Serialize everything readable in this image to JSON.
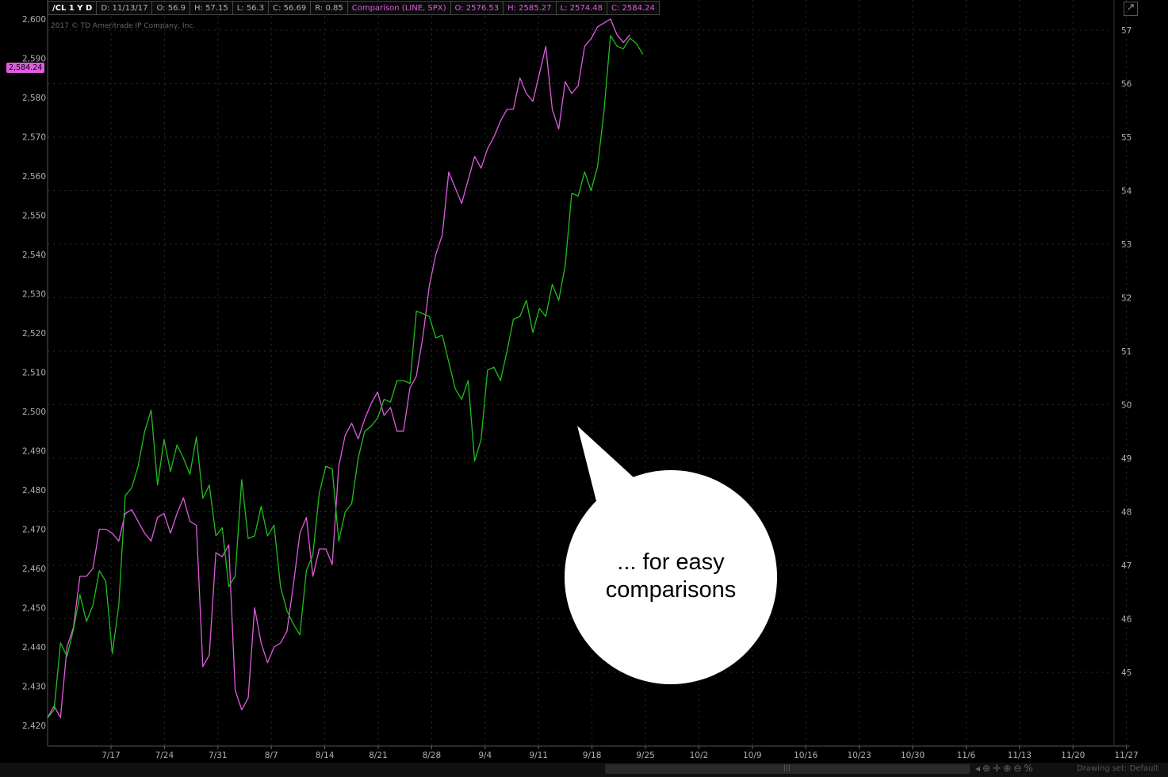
{
  "header": {
    "symbol": "/CL 1 Y D",
    "date": "D: 11/13/17",
    "open": "O: 56.9",
    "high": "H: 57.15",
    "low": "L: 56.3",
    "close": "C: 56.69",
    "range": "R: 0.85",
    "comparison": "Comparison (LINE, SPX)",
    "cmp_open": "O: 2576.53",
    "cmp_high": "H: 2585.27",
    "cmp_low": "L: 2574.48",
    "cmp_close": "C: 2584.24"
  },
  "copyright": "2017 © TD Ameritrade IP Company, Inc.",
  "price_tag": "2,584.24",
  "corner_icon": "expand-icon",
  "callout": {
    "line1": "... for easy",
    "line2": "comparisons"
  },
  "footer": {
    "drawing_set": "Drawing set: Default",
    "grip": "|||"
  },
  "colors": {
    "cl": "#1fbf1f",
    "spx": "#e05ce0",
    "background": "#000000",
    "grid": "#2e2e2e"
  },
  "chart_data": {
    "type": "line",
    "x_tick_labels": [
      "7/17",
      "7/24",
      "7/31",
      "8/7",
      "8/14",
      "8/21",
      "8/28",
      "9/4",
      "9/11",
      "9/18",
      "9/25",
      "10/2",
      "10/9",
      "10/16",
      "10/23",
      "10/30",
      "11/6",
      "11/13",
      "11/20",
      "11/27"
    ],
    "left_axis": {
      "ticks": [
        "2,420",
        "2,430",
        "2,440",
        "2,450",
        "2,460",
        "2,470",
        "2,480",
        "2,490",
        "2,500",
        "2,510",
        "2,520",
        "2,530",
        "2,540",
        "2,550",
        "2,560",
        "2,570",
        "2,580",
        "2,590",
        "2,600"
      ],
      "range": [
        2417,
        2600
      ]
    },
    "right_axis": {
      "ticks": [
        "45",
        "46",
        "47",
        "48",
        "49",
        "50",
        "51",
        "52",
        "53",
        "54",
        "55",
        "56",
        "57"
      ]
    },
    "grid": true,
    "series": [
      {
        "name": "SPX",
        "axis": "left",
        "color": "#e05ce0",
        "values": [
          2422,
          2425,
          2422,
          2440,
          2445,
          2458,
          2458,
          2460,
          2470,
          2470,
          2469,
          2467,
          2474,
          2475,
          2472,
          2469,
          2467,
          2473,
          2474,
          2469,
          2474,
          2478,
          2472,
          2471,
          2435,
          2438,
          2464,
          2463,
          2466,
          2429,
          2424,
          2427,
          2450,
          2441,
          2436,
          2440,
          2441,
          2444,
          2456,
          2469,
          2473,
          2458,
          2465,
          2465,
          2461,
          2486,
          2494,
          2497,
          2493,
          2498,
          2502,
          2505,
          2499,
          2501,
          2495,
          2495,
          2506,
          2509,
          2519,
          2532,
          2540,
          2545,
          2561,
          2557,
          2553,
          2559,
          2565,
          2562,
          2567,
          2570,
          2574,
          2577,
          2577,
          2585,
          2581,
          2579,
          2586,
          2593,
          2577,
          2572,
          2584,
          2581,
          2583,
          2593,
          2595,
          2598,
          2599,
          2600,
          2596,
          2594,
          2596
        ]
      },
      {
        "name": "/CL",
        "axis": "right",
        "color": "#1fbf1f",
        "values": [
          44.15,
          44.3,
          45.55,
          45.3,
          45.8,
          46.45,
          45.95,
          46.25,
          46.9,
          46.7,
          45.35,
          46.25,
          48.3,
          48.45,
          48.85,
          49.5,
          49.9,
          48.5,
          49.35,
          48.75,
          49.25,
          49.0,
          48.7,
          49.4,
          48.25,
          48.5,
          47.55,
          47.7,
          46.6,
          46.8,
          48.6,
          47.5,
          47.55,
          48.1,
          47.55,
          47.75,
          46.6,
          46.15,
          45.9,
          45.7,
          46.9,
          47.2,
          48.35,
          48.85,
          48.8,
          47.45,
          48.0,
          48.15,
          49.0,
          49.5,
          49.6,
          49.75,
          50.1,
          50.05,
          50.45,
          50.45,
          50.4,
          51.75,
          51.7,
          51.65,
          51.25,
          51.3,
          50.8,
          50.3,
          50.1,
          50.45,
          48.95,
          49.35,
          50.65,
          50.7,
          50.45,
          51.0,
          51.6,
          51.65,
          51.95,
          51.35,
          51.8,
          51.65,
          52.25,
          51.95,
          52.6,
          53.95,
          53.9,
          54.35,
          54.0,
          54.45,
          55.5,
          56.9,
          56.7,
          56.65,
          56.85,
          56.75,
          56.55
        ]
      }
    ]
  }
}
